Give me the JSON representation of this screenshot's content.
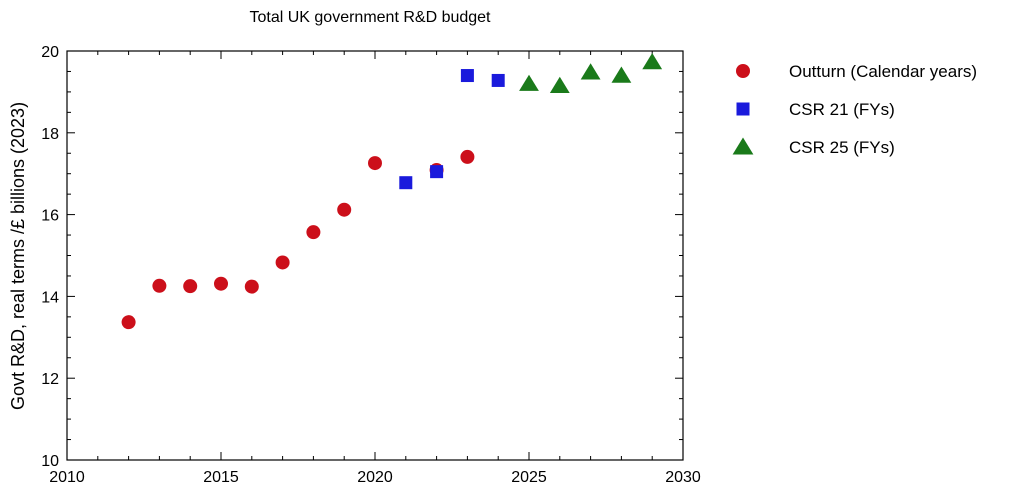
{
  "chart_data": {
    "type": "scatter",
    "title": "Total UK government R&D budget",
    "xlabel": "",
    "ylabel": "Govt R&D, real terms /£ billions (2023)",
    "xlim": [
      2010,
      2030
    ],
    "ylim": [
      10,
      20
    ],
    "xticks": [
      2010,
      2015,
      2020,
      2025,
      2030
    ],
    "yticks": [
      10,
      12,
      14,
      16,
      18,
      20
    ],
    "grid": false,
    "legend_position": "right",
    "series": [
      {
        "name": "Outturn (Calendar years)",
        "marker": "circle",
        "color": "#cc0f1a",
        "points": [
          {
            "x": 2012,
            "y": 13.37
          },
          {
            "x": 2013,
            "y": 14.26
          },
          {
            "x": 2014,
            "y": 14.25
          },
          {
            "x": 2015,
            "y": 14.31
          },
          {
            "x": 2016,
            "y": 14.24
          },
          {
            "x": 2017,
            "y": 14.83
          },
          {
            "x": 2018,
            "y": 15.57
          },
          {
            "x": 2019,
            "y": 16.12
          },
          {
            "x": 2020,
            "y": 17.26
          },
          {
            "x": 2022,
            "y": 17.09
          },
          {
            "x": 2023,
            "y": 17.41
          }
        ]
      },
      {
        "name": "CSR 21 (FYs)",
        "marker": "square",
        "color": "#1a1adc",
        "points": [
          {
            "x": 2021,
            "y": 16.78
          },
          {
            "x": 2022,
            "y": 17.05
          },
          {
            "x": 2023,
            "y": 19.4
          },
          {
            "x": 2024,
            "y": 19.28
          }
        ]
      },
      {
        "name": "CSR 25 (FYs)",
        "marker": "triangle",
        "color": "#1a7a1a",
        "points": [
          {
            "x": 2025,
            "y": 19.2
          },
          {
            "x": 2026,
            "y": 19.15
          },
          {
            "x": 2027,
            "y": 19.48
          },
          {
            "x": 2028,
            "y": 19.4
          },
          {
            "x": 2029,
            "y": 19.73
          }
        ]
      }
    ]
  }
}
